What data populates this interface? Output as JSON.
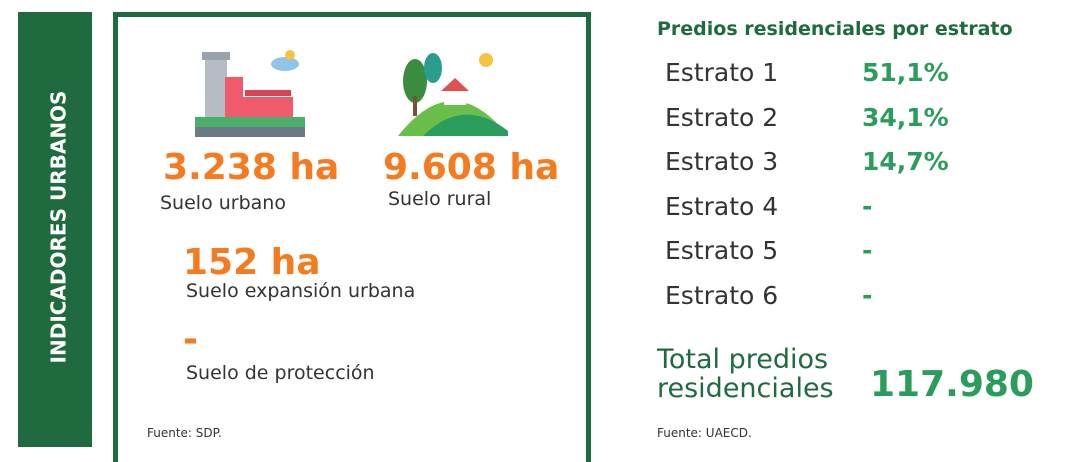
{
  "sidebar": {
    "title": "INDICADORES URBANOS"
  },
  "land": {
    "urban": {
      "value": "3.238 ha",
      "label": "Suelo urbano"
    },
    "rural": {
      "value": "9.608 ha",
      "label": "Suelo rural"
    },
    "expansion": {
      "value": "152 ha",
      "label": "Suelo expansión urbana"
    },
    "protection": {
      "value": "-",
      "label": "Suelo de protección"
    },
    "source": "Fuente: SDP."
  },
  "strata": {
    "title": "Predios residenciales por estrato",
    "rows": [
      [
        "Estrato 1",
        "51,1%"
      ],
      [
        "Estrato 2",
        "34,1%"
      ],
      [
        "Estrato 3",
        "14,7%"
      ],
      [
        "Estrato 4",
        "-"
      ],
      [
        "Estrato 5",
        "-"
      ],
      [
        "Estrato 6",
        "-"
      ]
    ],
    "total_label": "Total predios residenciales",
    "total_value": "117.980",
    "source": "Fuente: UAECD."
  }
}
